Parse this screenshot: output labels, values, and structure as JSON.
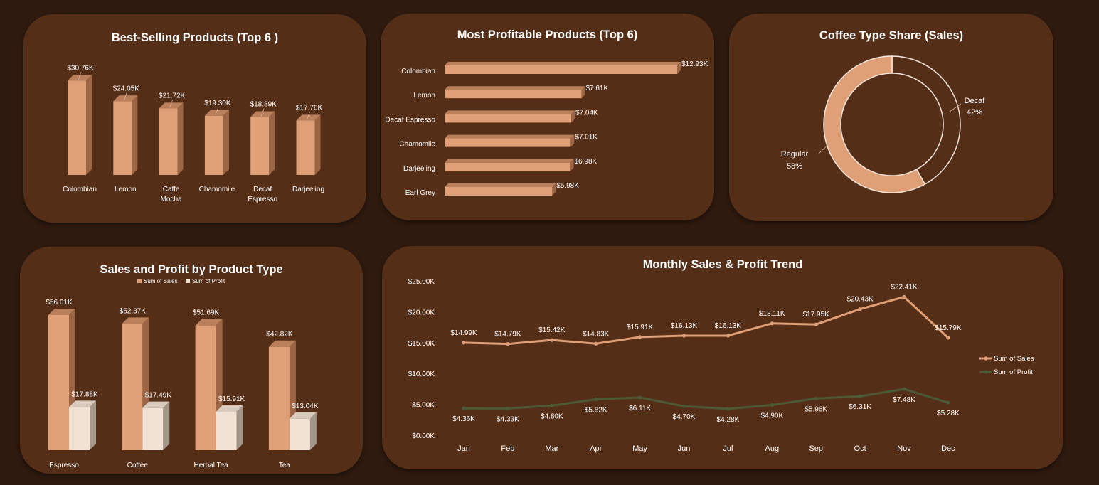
{
  "colors": {
    "background": "#2e1a0f",
    "panel": "#552e17",
    "sales": "#e0a077",
    "sales_side": "#9c6646",
    "sales_top": "#b9805b",
    "profit_bar": "#f1e2d3",
    "profit_side": "#a3968a",
    "profit_line": "#4b5a35"
  },
  "panels": {
    "best_selling": "Best-Selling Products (Top 6 )",
    "most_profitable": "Most Profitable Products (Top 6)",
    "coffee_share": "Coffee Type Share (Sales)",
    "sales_profit_type": "Sales and  Profit by Product Type",
    "monthly_trend": "Monthly Sales & Profit Trend"
  },
  "chart_data": [
    {
      "id": "best_selling",
      "type": "bar",
      "title": "Best-Selling Products (Top 6 )",
      "categories": [
        [
          "Colombian"
        ],
        [
          "Lemon"
        ],
        [
          "Caffe",
          "Mocha"
        ],
        [
          "Chamomile"
        ],
        [
          "Decaf",
          "Espresso"
        ],
        [
          "Darjeeling"
        ]
      ],
      "values": [
        30.76,
        24.05,
        21.72,
        19.3,
        18.89,
        17.76
      ],
      "labels": [
        "$30.76K",
        "$24.05K",
        "$21.72K",
        "$19.30K",
        "$18.89K",
        "$17.76K"
      ]
    },
    {
      "id": "most_profitable",
      "type": "bar",
      "orientation": "horizontal",
      "title": "Most Profitable Products (Top 6)",
      "categories": [
        "Colombian",
        "Lemon",
        "Decaf Espresso",
        "Chamomile",
        "Darjeeling",
        "Earl Grey"
      ],
      "values": [
        12.93,
        7.61,
        7.04,
        7.01,
        6.98,
        5.98
      ],
      "labels": [
        "$12.93K",
        "$7.61K",
        "$7.04K",
        "$7.01K",
        "$6.98K",
        "$5.98K"
      ]
    },
    {
      "id": "coffee_share",
      "type": "pie",
      "title": "Coffee Type Share (Sales)",
      "slices": [
        {
          "name": "Decaf",
          "value": 42,
          "label": "42%"
        },
        {
          "name": "Regular",
          "value": 58,
          "label": "58%"
        }
      ]
    },
    {
      "id": "sales_profit_type",
      "type": "bar",
      "title": "Sales and  Profit by Product Type",
      "legend": "top",
      "categories": [
        "Espresso",
        "Coffee",
        "Herbal Tea",
        "Tea"
      ],
      "series": [
        {
          "name": "Sum of Sales",
          "values": [
            56.01,
            52.37,
            51.69,
            42.82
          ],
          "labels": [
            "$56.01K",
            "$52.37K",
            "$51.69K",
            "$42.82K"
          ]
        },
        {
          "name": "Sum of Profit",
          "values": [
            17.88,
            17.49,
            15.91,
            13.04
          ],
          "labels": [
            "$17.88K",
            "$17.49K",
            "$15.91K",
            "$13.04K"
          ]
        }
      ]
    },
    {
      "id": "monthly_trend",
      "type": "line",
      "title": "Monthly Sales & Profit Trend",
      "legend": "right",
      "categories": [
        "Jan",
        "Feb",
        "Mar",
        "Apr",
        "May",
        "Jun",
        "Jul",
        "Aug",
        "Sep",
        "Oct",
        "Nov",
        "Dec"
      ],
      "ylim": [
        0,
        25
      ],
      "yticks": [
        "$0.00K",
        "$5.00K",
        "$10.00K",
        "$15.00K",
        "$20.00K",
        "$25.00K"
      ],
      "series": [
        {
          "name": "Sum of Sales",
          "values": [
            14.99,
            14.79,
            15.42,
            14.83,
            15.91,
            16.13,
            16.13,
            18.11,
            17.95,
            20.43,
            22.41,
            15.79
          ],
          "labels": [
            "$14.99K",
            "$14.79K",
            "$15.42K",
            "$14.83K",
            "$15.91K",
            "$16.13K",
            "$16.13K",
            "$18.11K",
            "$17.95K",
            "$20.43K",
            "$22.41K",
            "$15.79K"
          ]
        },
        {
          "name": "Sum of Profit",
          "values": [
            4.36,
            4.33,
            4.8,
            5.82,
            6.11,
            4.7,
            4.28,
            4.9,
            5.96,
            6.31,
            7.48,
            5.28
          ],
          "labels": [
            "$4.36K",
            "$4.33K",
            "$4.80K",
            "$5.82K",
            "$6.11K",
            "$4.70K",
            "$4.28K",
            "$4.90K",
            "$5.96K",
            "$6.31K",
            "$7.48K",
            "$5.28K"
          ]
        }
      ]
    }
  ]
}
